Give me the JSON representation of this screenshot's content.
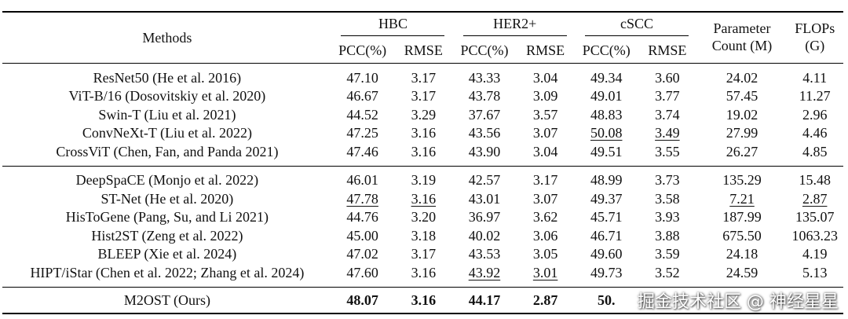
{
  "header": {
    "methods": "Methods",
    "groups": [
      "HBC",
      "HER2+",
      "cSCC"
    ],
    "sub": [
      "PCC(%)",
      "RMSE"
    ],
    "param_line1": "Parameter",
    "param_line2": "Count (M)",
    "flops_line1": "FLOPs",
    "flops_line2": "(G)"
  },
  "group1": [
    {
      "method": "ResNet50 (He et al. 2016)",
      "cells": [
        "47.10",
        "3.17",
        "43.33",
        "3.04",
        "49.34",
        "3.60",
        "24.02",
        "4.11"
      ],
      "underline": []
    },
    {
      "method": "ViT-B/16 (Dosovitskiy et al. 2020)",
      "cells": [
        "46.67",
        "3.17",
        "43.78",
        "3.09",
        "49.01",
        "3.77",
        "57.45",
        "11.27"
      ],
      "underline": []
    },
    {
      "method": "Swin-T (Liu et al. 2021)",
      "cells": [
        "44.52",
        "3.29",
        "37.67",
        "3.57",
        "48.83",
        "3.74",
        "19.02",
        "2.96"
      ],
      "underline": []
    },
    {
      "method": "ConvNeXt-T (Liu et al. 2022)",
      "cells": [
        "47.25",
        "3.16",
        "43.56",
        "3.07",
        "50.08",
        "3.49",
        "27.99",
        "4.46"
      ],
      "underline": [
        4,
        5
      ]
    },
    {
      "method": "CrossViT (Chen, Fan, and Panda 2021)",
      "cells": [
        "47.46",
        "3.16",
        "43.90",
        "3.04",
        "49.51",
        "3.55",
        "26.27",
        "4.85"
      ],
      "underline": []
    }
  ],
  "group2": [
    {
      "method": "DeepSpaCE (Monjo et al. 2022)",
      "cells": [
        "46.01",
        "3.19",
        "42.57",
        "3.17",
        "48.99",
        "3.73",
        "135.29",
        "15.48"
      ],
      "underline": []
    },
    {
      "method": "ST-Net (He et al. 2020)",
      "cells": [
        "47.78",
        "3.16",
        "43.01",
        "3.07",
        "49.37",
        "3.58",
        "7.21",
        "2.87"
      ],
      "underline": [
        0,
        1,
        6,
        7
      ]
    },
    {
      "method": "HisToGene (Pang, Su, and Li 2021)",
      "cells": [
        "44.76",
        "3.20",
        "36.97",
        "3.62",
        "45.71",
        "3.93",
        "187.99",
        "135.07"
      ],
      "underline": []
    },
    {
      "method": "Hist2ST (Zeng et al. 2022)",
      "cells": [
        "45.00",
        "3.18",
        "40.02",
        "3.06",
        "46.71",
        "3.88",
        "675.50",
        "1063.23"
      ],
      "underline": []
    },
    {
      "method": "BLEEP (Xie et al. 2024)",
      "cells": [
        "47.02",
        "3.17",
        "43.53",
        "3.05",
        "49.60",
        "3.59",
        "24.18",
        "4.19"
      ],
      "underline": []
    },
    {
      "method": "HIPT/iStar (Chen et al. 2022; Zhang et al. 2024)",
      "cells": [
        "47.60",
        "3.16",
        "43.92",
        "3.01",
        "49.73",
        "3.52",
        "24.59",
        "5.13"
      ],
      "underline": [
        2,
        3
      ]
    }
  ],
  "ours": {
    "method": "M2OST (Ours)",
    "cells": [
      "48.07",
      "3.16",
      "44.17",
      "2.87",
      "50.",
      "",
      "",
      ""
    ]
  },
  "watermark": "掘金技术社区 @ 神经星星"
}
